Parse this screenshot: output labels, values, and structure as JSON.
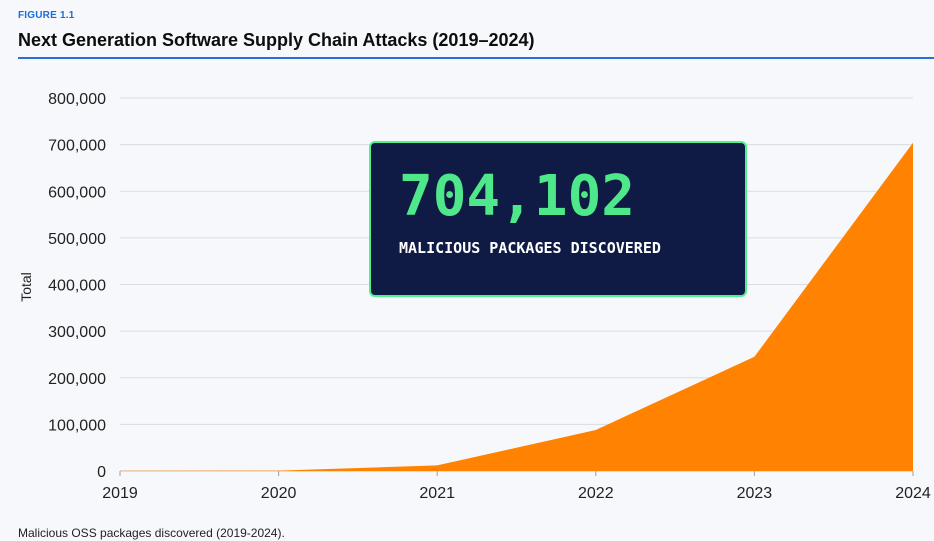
{
  "figure_label": "FIGURE 1.1",
  "title": "Next Generation Software Supply Chain Attacks (2019–2024)",
  "caption": "Malicious OSS packages discovered (2019-2024).",
  "callout": {
    "value": "704,102",
    "text": "MALICIOUS PACKAGES DISCOVERED"
  },
  "colors": {
    "area": "#ff8200",
    "accent": "#2a6fd6",
    "callout_bg": "#0f1b44",
    "callout_green": "#4ee88a"
  },
  "chart_data": {
    "type": "area",
    "x": [
      2019,
      2020,
      2021,
      2022,
      2023,
      2024
    ],
    "x_tick_labels": [
      "2019",
      "2020",
      "2021",
      "2022",
      "2023",
      "2024"
    ],
    "series": [
      {
        "values": [
          500,
          929,
          12000,
          88000,
          245000,
          704102
        ]
      }
    ],
    "ylabel": "Total",
    "xlabel": "",
    "ylim": [
      0,
      800000
    ],
    "y_ticks": [
      0,
      100000,
      200000,
      300000,
      400000,
      500000,
      600000,
      700000,
      800000
    ],
    "y_tick_labels": [
      "0",
      "100,000",
      "200,000",
      "300,000",
      "400,000",
      "500,000",
      "600,000",
      "700,000",
      "800,000"
    ],
    "grid": true
  }
}
